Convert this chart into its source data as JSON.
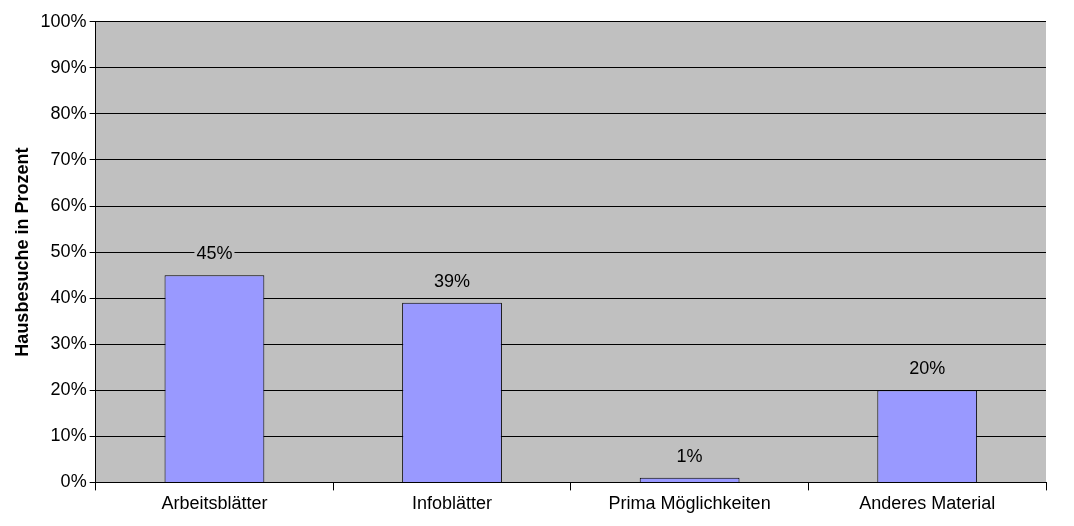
{
  "chart_data": {
    "type": "bar",
    "ylabel": "Hausbesuche in Prozent",
    "categories": [
      "Arbeitsblätter",
      "Infoblätter",
      "Prima Möglichkeiten",
      "Anderes Material"
    ],
    "values": [
      45,
      39,
      1,
      20
    ],
    "color": "#9999ff",
    "value_labels": [
      "45%",
      "39%",
      "1%",
      "20%"
    ],
    "ylim": [
      0,
      100
    ],
    "yticks": [
      {
        "value": 0,
        "label": "0%"
      },
      {
        "value": 10,
        "label": "10%"
      },
      {
        "value": 20,
        "label": "20%"
      },
      {
        "value": 30,
        "label": "30%"
      },
      {
        "value": 40,
        "label": "40%"
      },
      {
        "value": 50,
        "label": "50%"
      },
      {
        "value": 60,
        "label": "60%"
      },
      {
        "value": 70,
        "label": "70%"
      },
      {
        "value": 80,
        "label": "80%"
      },
      {
        "value": 90,
        "label": "90%"
      },
      {
        "value": 100,
        "label": "100%"
      }
    ],
    "grid": "y",
    "legend": false
  }
}
